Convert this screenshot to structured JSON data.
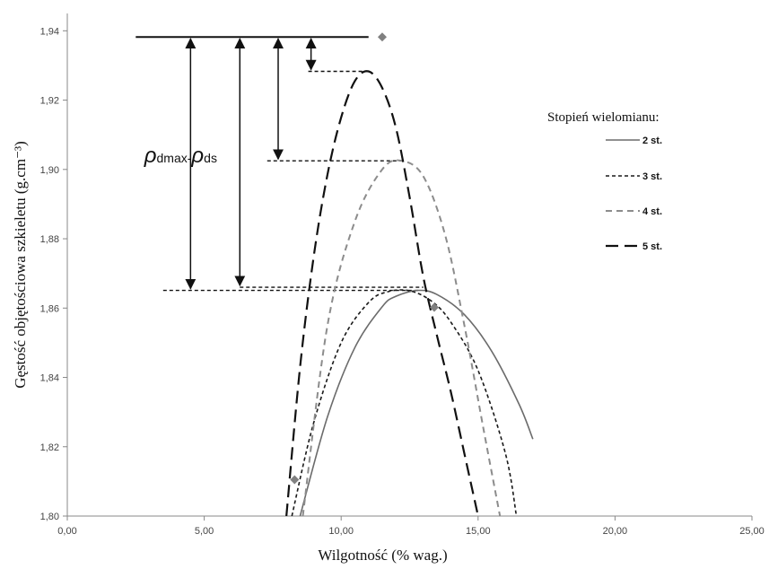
{
  "chart_data": {
    "type": "line",
    "title": "",
    "xlabel": "Wilgotność (% wag.)",
    "ylabel": "Gęstość objętościowa szkieletu (g.cm⁻³)",
    "xlim": [
      0,
      25
    ],
    "ylim": [
      1.8,
      1.945
    ],
    "x_ticks": [
      "0,00",
      "5,00",
      "10,00",
      "15,00",
      "20,00",
      "25,00"
    ],
    "y_ticks": [
      "1,80",
      "1,82",
      "1,84",
      "1,86",
      "1,88",
      "1,90",
      "1,92",
      "1,94"
    ],
    "legend": {
      "title": "Stopień wielomianu:",
      "placement": "right",
      "entries": [
        "2 st.",
        "3 st.",
        "4 st.",
        "5 st."
      ]
    },
    "series": [
      {
        "name": "2 st.",
        "style": "solid",
        "color": "#6b6b6b",
        "x": [
          8.5,
          9.5,
          10.5,
          11.5,
          12.0,
          12.8,
          13.5,
          14.5,
          15.5,
          16.5,
          17.0
        ],
        "y": [
          1.8,
          1.8286,
          1.8486,
          1.8604,
          1.8634,
          1.8651,
          1.8639,
          1.8581,
          1.8475,
          1.8322,
          1.8222
        ]
      },
      {
        "name": "3 st.",
        "style": "short-dash",
        "color": "#1a1a1a",
        "x": [
          8.2,
          9.0,
          10.0,
          11.0,
          11.7,
          12.5,
          13.3,
          14.0,
          15.0,
          16.0,
          16.4
        ],
        "y": [
          1.8,
          1.827,
          1.85,
          1.8616,
          1.8647,
          1.865,
          1.862,
          1.856,
          1.842,
          1.818,
          1.8
        ]
      },
      {
        "name": "4 st.",
        "style": "dash",
        "color": "#8c8c8c",
        "x": [
          8.6,
          9.5,
          10.5,
          11.5,
          12.2,
          13.0,
          13.8,
          14.5,
          15.2,
          15.8
        ],
        "y": [
          1.8,
          1.855,
          1.885,
          1.9,
          1.9025,
          1.898,
          1.881,
          1.855,
          1.825,
          1.8
        ]
      },
      {
        "name": "5 st.",
        "style": "long-dash",
        "color": "#111111",
        "x": [
          8.0,
          8.5,
          9.0,
          9.5,
          10.0,
          10.5,
          11.0,
          11.5,
          12.0,
          12.5,
          13.0,
          13.5,
          14.0,
          14.5,
          15.0
        ],
        "y": [
          1.8,
          1.843,
          1.875,
          1.8985,
          1.915,
          1.9255,
          1.9283,
          1.9235,
          1.912,
          1.892,
          1.869,
          1.852,
          1.836,
          1.818,
          1.8
        ]
      }
    ],
    "points": [
      {
        "x": 11.5,
        "y": 1.9382
      },
      {
        "x": 13.4,
        "y": 1.8602
      },
      {
        "x": 8.3,
        "y": 1.8105
      }
    ],
    "reference_lines": [
      {
        "y": 1.9382,
        "x_from": 2.5,
        "x_to": 11.0,
        "style": "solid"
      },
      {
        "y": 1.9283,
        "x_from": 8.8,
        "x_to": 11.0,
        "style": "short-dash"
      },
      {
        "y": 1.9025,
        "x_from": 7.3,
        "x_to": 12.2,
        "style": "short-dash"
      },
      {
        "y": 1.866,
        "x_from": 6.3,
        "x_to": 13.0,
        "style": "short-dash"
      },
      {
        "y": 1.8651,
        "x_from": 3.5,
        "x_to": 12.8,
        "style": "short-dash"
      }
    ],
    "arrows": [
      {
        "x": 4.5,
        "y_top": 1.9382,
        "y_bottom": 1.8651
      },
      {
        "x": 6.3,
        "y_top": 1.9382,
        "y_bottom": 1.866
      },
      {
        "x": 7.7,
        "y_top": 1.9382,
        "y_bottom": 1.9025
      },
      {
        "x": 8.9,
        "y_top": 1.9382,
        "y_bottom": 1.9283
      }
    ],
    "annotation": {
      "symbol": "ρ",
      "sub1": "dmax",
      "sep": "-",
      "sub2": "ds",
      "x": 1.5,
      "y": 1.9025
    }
  }
}
